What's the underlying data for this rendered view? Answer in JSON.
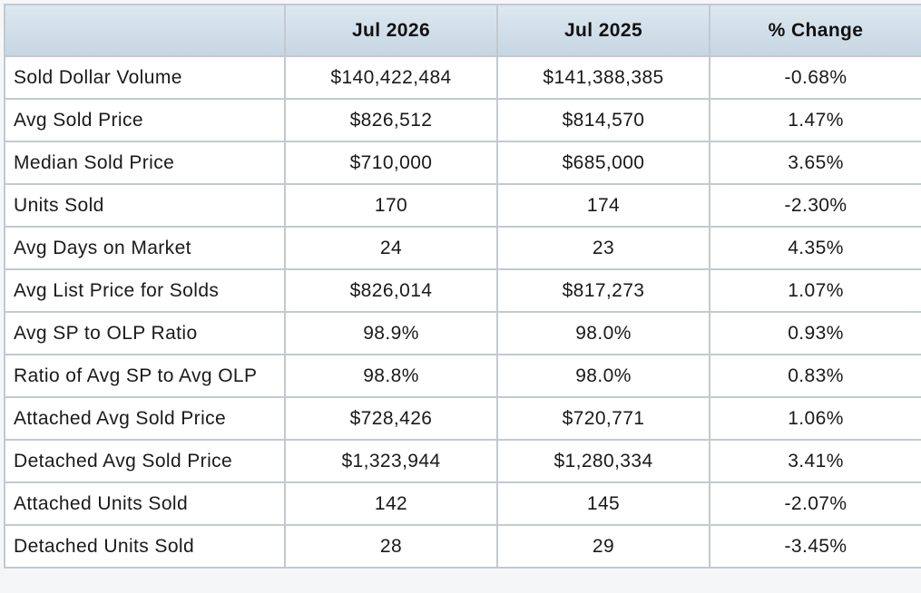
{
  "table": {
    "columns": [
      "",
      "Jul 2026",
      "Jul 2025",
      "% Change"
    ],
    "rows": [
      {
        "label": "Sold Dollar Volume",
        "current": "$140,422,484",
        "previous": "$141,388,385",
        "change": "-0.68%"
      },
      {
        "label": "Avg Sold Price",
        "current": "$826,512",
        "previous": "$814,570",
        "change": "1.47%"
      },
      {
        "label": "Median Sold Price",
        "current": "$710,000",
        "previous": "$685,000",
        "change": "3.65%"
      },
      {
        "label": "Units Sold",
        "current": "170",
        "previous": "174",
        "change": "-2.30%"
      },
      {
        "label": "Avg Days on Market",
        "current": "24",
        "previous": "23",
        "change": "4.35%"
      },
      {
        "label": "Avg List Price for Solds",
        "current": "$826,014",
        "previous": "$817,273",
        "change": "1.07%"
      },
      {
        "label": "Avg SP to OLP Ratio",
        "current": "98.9%",
        "previous": "98.0%",
        "change": "0.93%"
      },
      {
        "label": "Ratio of Avg SP to Avg OLP",
        "current": "98.8%",
        "previous": "98.0%",
        "change": "0.83%"
      },
      {
        "label": "Attached Avg Sold Price",
        "current": "$728,426",
        "previous": "$720,771",
        "change": "1.06%"
      },
      {
        "label": "Detached Avg Sold Price",
        "current": "$1,323,944",
        "previous": "$1,280,334",
        "change": "3.41%"
      },
      {
        "label": "Attached Units Sold",
        "current": "142",
        "previous": "145",
        "change": "-2.07%"
      },
      {
        "label": "Detached Units Sold",
        "current": "28",
        "previous": "29",
        "change": "-3.45%"
      }
    ]
  },
  "colors": {
    "header_bg": "#c6d6e3",
    "border": "#c3c9cf",
    "text": "#1a1a1a"
  }
}
